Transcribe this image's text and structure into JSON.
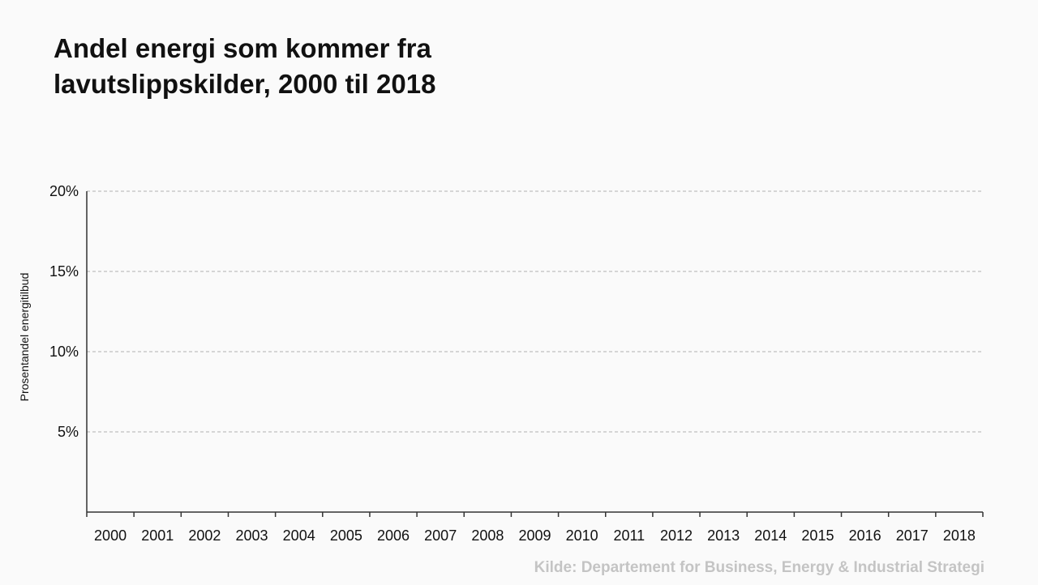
{
  "chart_data": {
    "type": "line",
    "title_lines": [
      "Andel energi som kommer fra",
      "lavutslippskilder, 2000 til 2018"
    ],
    "xlabel": "",
    "ylabel": "Prosentandel energitilbud",
    "categories": [
      "2000",
      "2001",
      "2002",
      "2003",
      "2004",
      "2005",
      "2006",
      "2007",
      "2008",
      "2009",
      "2010",
      "2011",
      "2012",
      "2013",
      "2014",
      "2015",
      "2016",
      "2017",
      "2018"
    ],
    "series": [],
    "ylim": [
      0,
      20
    ],
    "yticks": [
      {
        "value": 5,
        "label": "5%"
      },
      {
        "value": 10,
        "label": "10%"
      },
      {
        "value": 15,
        "label": "15%"
      },
      {
        "value": 20,
        "label": "20%"
      }
    ],
    "grid": "horizontal dashed",
    "legend": "none"
  },
  "source": "Kilde: Departement for Business, Energy & Industrial Strategi",
  "colors": {
    "background": "#fafafa",
    "axis": "#333333",
    "grid": "#b0b0b0",
    "text": "#111111",
    "source_text": "#c4c4c4"
  }
}
